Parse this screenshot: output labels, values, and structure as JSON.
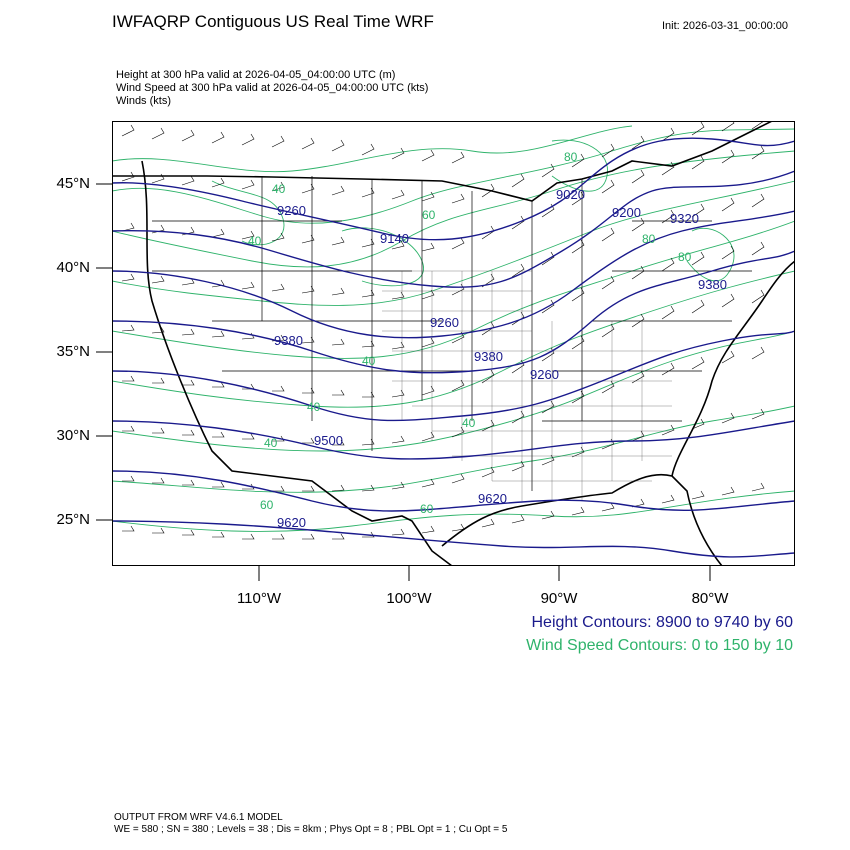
{
  "title": "IWFAQRP Contiguous US Real Time WRF",
  "init": "Init: 2026-03-31_00:00:00",
  "fields": [
    "Height at 300 hPa valid at 2026-04-05_04:00:00 UTC   (m)",
    "Wind Speed at 300 hPa valid at 2026-04-05_04:00:00 UTC   (kts)",
    "Winds   (kts)"
  ],
  "lat_labels": [
    "45°N",
    "40°N",
    "35°N",
    "30°N",
    "25°N"
  ],
  "lon_labels": [
    "110°W",
    "100°W",
    "90°W",
    "80°W"
  ],
  "height_labels": [
    "9260",
    "9140",
    "9020",
    "9200",
    "9260",
    "9320",
    "9380",
    "9260",
    "9380",
    "9380",
    "9500",
    "9620",
    "9620"
  ],
  "wind_labels": [
    "40",
    "40",
    "40",
    "40",
    "40",
    "40",
    "60",
    "60",
    "60",
    "80",
    "80",
    "80"
  ],
  "legend": {
    "height": "Height Contours: 8900 to 9740 by 60",
    "wind": "Wind Speed Contours: 0 to 150 by 10"
  },
  "footer": {
    "line1": "OUTPUT FROM WRF V4.6.1 MODEL",
    "line2": "WE = 580 ; SN = 380 ; Levels = 38 ; Dis = 8km ; Phys Opt = 8 ; PBL Opt = 1 ; Cu Opt = 5"
  },
  "colors": {
    "height_contour": "#1a1a8c",
    "wind_contour": "#2fb36b",
    "boundaries": "#000000"
  }
}
